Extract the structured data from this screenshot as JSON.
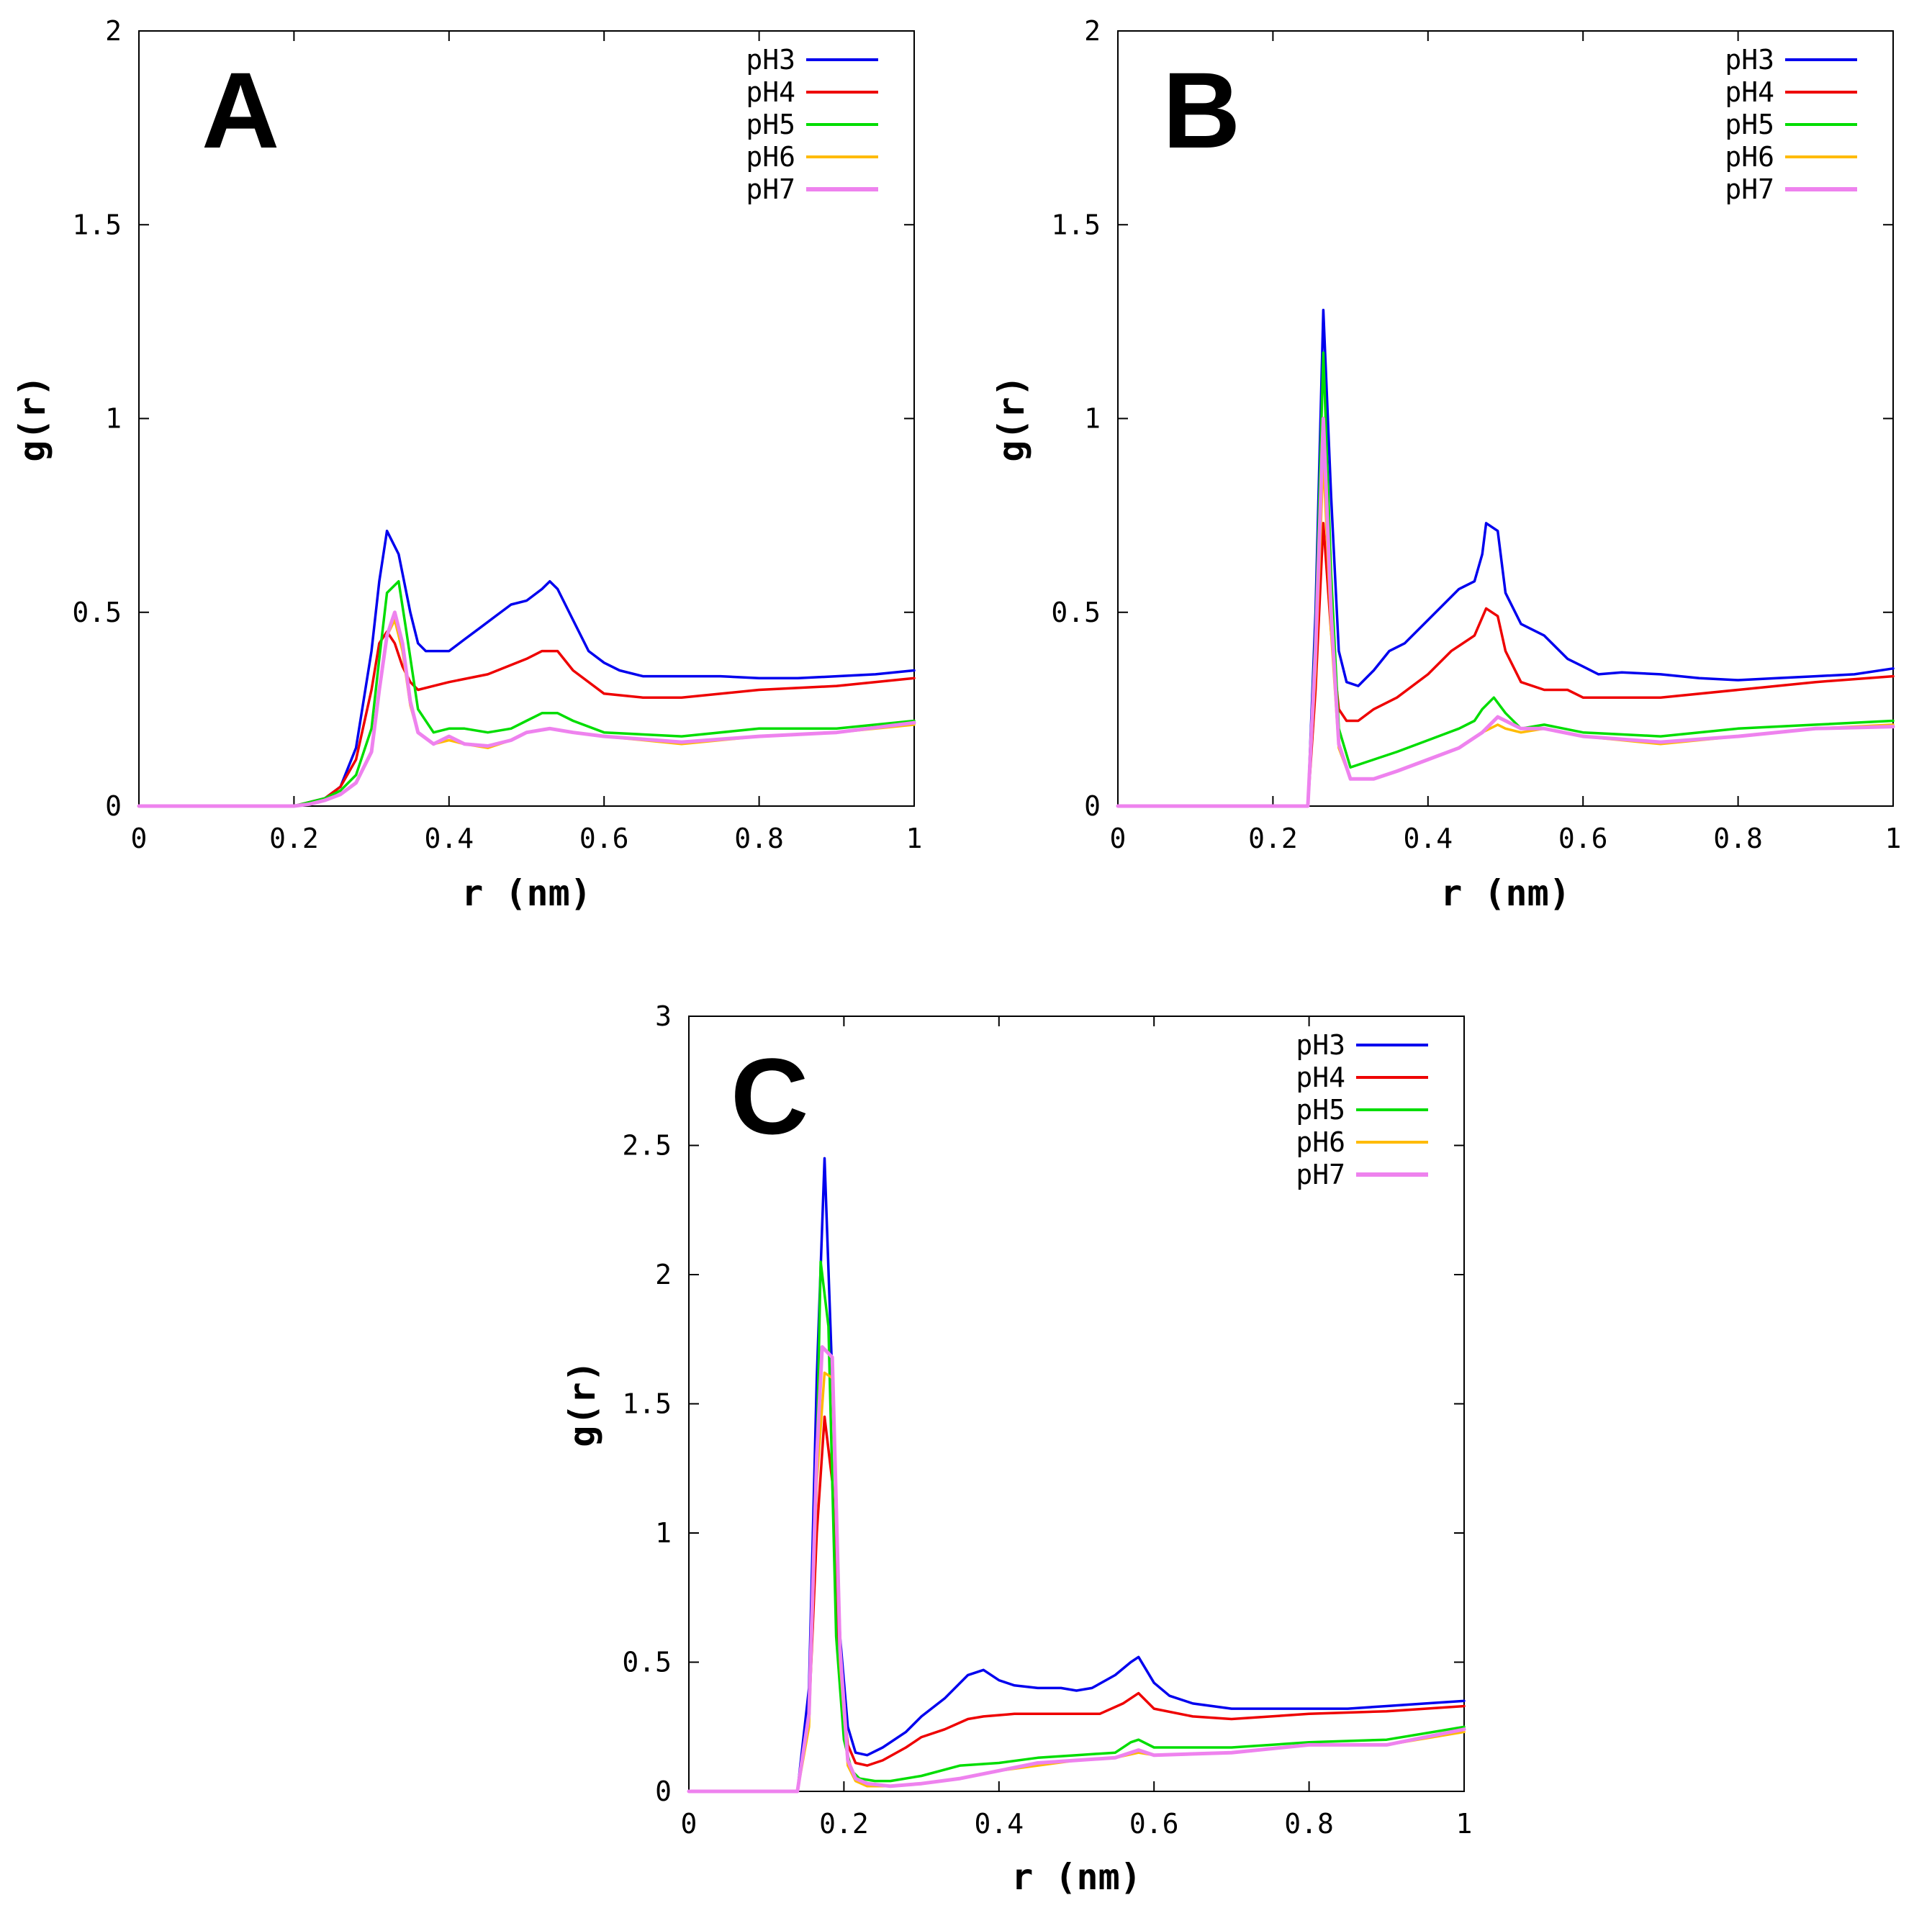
{
  "chart_data": [
    {
      "type": "line",
      "panel_label": "A",
      "xlabel": "r (nm)",
      "ylabel": "g(r)",
      "xlim": [
        0,
        1
      ],
      "ylim": [
        0,
        2
      ],
      "xticks": [
        "0",
        "0.2",
        "0.4",
        "0.6",
        "0.8",
        "1"
      ],
      "yticks": [
        "0",
        "0.5",
        "1",
        "1.5",
        "2"
      ],
      "legend": "top-right",
      "series": [
        {
          "name": "pH3",
          "color": "#0000ee",
          "x": [
            0,
            0.2,
            0.22,
            0.24,
            0.26,
            0.28,
            0.3,
            0.31,
            0.32,
            0.335,
            0.35,
            0.36,
            0.37,
            0.38,
            0.4,
            0.42,
            0.44,
            0.46,
            0.48,
            0.5,
            0.52,
            0.53,
            0.54,
            0.56,
            0.58,
            0.6,
            0.62,
            0.65,
            0.7,
            0.75,
            0.8,
            0.85,
            0.9,
            0.95,
            1.0
          ],
          "y": [
            0,
            0,
            0.01,
            0.02,
            0.05,
            0.15,
            0.4,
            0.58,
            0.71,
            0.65,
            0.5,
            0.42,
            0.4,
            0.4,
            0.4,
            0.43,
            0.46,
            0.49,
            0.52,
            0.53,
            0.56,
            0.58,
            0.56,
            0.48,
            0.4,
            0.37,
            0.35,
            0.335,
            0.335,
            0.335,
            0.33,
            0.33,
            0.335,
            0.34,
            0.35
          ]
        },
        {
          "name": "pH4",
          "color": "#ee0000",
          "x": [
            0,
            0.2,
            0.22,
            0.24,
            0.26,
            0.28,
            0.3,
            0.31,
            0.32,
            0.33,
            0.34,
            0.35,
            0.36,
            0.38,
            0.4,
            0.45,
            0.5,
            0.52,
            0.54,
            0.56,
            0.6,
            0.65,
            0.7,
            0.8,
            0.9,
            1.0
          ],
          "y": [
            0,
            0,
            0.01,
            0.02,
            0.05,
            0.12,
            0.3,
            0.42,
            0.45,
            0.42,
            0.36,
            0.32,
            0.3,
            0.31,
            0.32,
            0.34,
            0.38,
            0.4,
            0.4,
            0.35,
            0.29,
            0.28,
            0.28,
            0.3,
            0.31,
            0.33
          ]
        },
        {
          "name": "pH5",
          "color": "#00dd00",
          "x": [
            0,
            0.2,
            0.22,
            0.24,
            0.26,
            0.28,
            0.3,
            0.31,
            0.32,
            0.335,
            0.345,
            0.36,
            0.38,
            0.4,
            0.42,
            0.45,
            0.48,
            0.5,
            0.52,
            0.54,
            0.56,
            0.6,
            0.7,
            0.8,
            0.9,
            1.0
          ],
          "y": [
            0,
            0,
            0.01,
            0.02,
            0.04,
            0.08,
            0.2,
            0.38,
            0.55,
            0.58,
            0.45,
            0.25,
            0.19,
            0.2,
            0.2,
            0.19,
            0.2,
            0.22,
            0.24,
            0.24,
            0.22,
            0.19,
            0.18,
            0.2,
            0.2,
            0.22
          ]
        },
        {
          "name": "pH6",
          "color": "#ffbb00",
          "x": [
            0,
            0.2,
            0.22,
            0.24,
            0.26,
            0.28,
            0.3,
            0.31,
            0.32,
            0.33,
            0.34,
            0.35,
            0.36,
            0.38,
            0.4,
            0.42,
            0.45,
            0.48,
            0.5,
            0.53,
            0.56,
            0.6,
            0.7,
            0.8,
            0.9,
            1.0
          ],
          "y": [
            0,
            0,
            0.005,
            0.015,
            0.03,
            0.06,
            0.14,
            0.3,
            0.44,
            0.48,
            0.4,
            0.26,
            0.19,
            0.16,
            0.17,
            0.16,
            0.15,
            0.17,
            0.19,
            0.2,
            0.19,
            0.18,
            0.16,
            0.18,
            0.19,
            0.21
          ]
        },
        {
          "name": "pH7",
          "color": "#ee82ee",
          "x": [
            0,
            0.2,
            0.22,
            0.24,
            0.26,
            0.28,
            0.3,
            0.31,
            0.32,
            0.33,
            0.34,
            0.35,
            0.36,
            0.38,
            0.4,
            0.42,
            0.45,
            0.48,
            0.5,
            0.53,
            0.56,
            0.6,
            0.7,
            0.8,
            0.9,
            1.0
          ],
          "y": [
            0,
            0,
            0.005,
            0.015,
            0.03,
            0.06,
            0.14,
            0.3,
            0.44,
            0.5,
            0.42,
            0.27,
            0.19,
            0.16,
            0.18,
            0.16,
            0.155,
            0.17,
            0.19,
            0.2,
            0.19,
            0.18,
            0.165,
            0.18,
            0.19,
            0.215
          ]
        }
      ]
    },
    {
      "type": "line",
      "panel_label": "B",
      "xlabel": "r (nm)",
      "ylabel": "g(r)",
      "xlim": [
        0,
        1
      ],
      "ylim": [
        0,
        2
      ],
      "xticks": [
        "0",
        "0.2",
        "0.4",
        "0.6",
        "0.8",
        "1"
      ],
      "yticks": [
        "0",
        "0.5",
        "1",
        "1.5",
        "2"
      ],
      "legend": "top-right",
      "series": [
        {
          "name": "pH3",
          "color": "#0000ee",
          "x": [
            0,
            0.245,
            0.255,
            0.265,
            0.275,
            0.285,
            0.295,
            0.31,
            0.33,
            0.35,
            0.37,
            0.4,
            0.42,
            0.44,
            0.46,
            0.47,
            0.475,
            0.49,
            0.5,
            0.52,
            0.55,
            0.58,
            0.6,
            0.62,
            0.65,
            0.7,
            0.75,
            0.8,
            0.85,
            0.9,
            0.95,
            1.0
          ],
          "y": [
            0,
            0,
            0.5,
            1.28,
            0.8,
            0.4,
            0.32,
            0.31,
            0.35,
            0.4,
            0.42,
            0.48,
            0.52,
            0.56,
            0.58,
            0.65,
            0.73,
            0.71,
            0.55,
            0.47,
            0.44,
            0.38,
            0.36,
            0.34,
            0.345,
            0.34,
            0.33,
            0.325,
            0.33,
            0.335,
            0.34,
            0.355
          ]
        },
        {
          "name": "pH4",
          "color": "#ee0000",
          "x": [
            0,
            0.245,
            0.255,
            0.265,
            0.275,
            0.285,
            0.295,
            0.31,
            0.33,
            0.36,
            0.4,
            0.43,
            0.46,
            0.475,
            0.49,
            0.5,
            0.52,
            0.55,
            0.58,
            0.6,
            0.65,
            0.7,
            0.8,
            0.9,
            1.0
          ],
          "y": [
            0,
            0,
            0.3,
            0.73,
            0.45,
            0.25,
            0.22,
            0.22,
            0.25,
            0.28,
            0.34,
            0.4,
            0.44,
            0.51,
            0.49,
            0.4,
            0.32,
            0.3,
            0.3,
            0.28,
            0.28,
            0.28,
            0.3,
            0.32,
            0.335
          ]
        },
        {
          "name": "pH5",
          "color": "#00dd00",
          "x": [
            0,
            0.245,
            0.255,
            0.265,
            0.275,
            0.285,
            0.3,
            0.33,
            0.36,
            0.4,
            0.44,
            0.46,
            0.47,
            0.485,
            0.5,
            0.52,
            0.55,
            0.6,
            0.7,
            0.8,
            0.9,
            1.0
          ],
          "y": [
            0,
            0,
            0.45,
            1.17,
            0.6,
            0.2,
            0.1,
            0.12,
            0.14,
            0.17,
            0.2,
            0.22,
            0.25,
            0.28,
            0.24,
            0.2,
            0.21,
            0.19,
            0.18,
            0.2,
            0.21,
            0.22
          ]
        },
        {
          "name": "pH6",
          "color": "#ffbb00",
          "x": [
            0,
            0.245,
            0.255,
            0.265,
            0.275,
            0.285,
            0.3,
            0.33,
            0.36,
            0.4,
            0.44,
            0.47,
            0.49,
            0.5,
            0.52,
            0.55,
            0.6,
            0.7,
            0.8,
            0.9,
            1.0
          ],
          "y": [
            0,
            0,
            0.35,
            0.9,
            0.45,
            0.15,
            0.07,
            0.07,
            0.09,
            0.12,
            0.15,
            0.19,
            0.21,
            0.2,
            0.19,
            0.2,
            0.18,
            0.16,
            0.18,
            0.2,
            0.21
          ]
        },
        {
          "name": "pH7",
          "color": "#ee82ee",
          "x": [
            0,
            0.245,
            0.255,
            0.265,
            0.275,
            0.285,
            0.3,
            0.33,
            0.36,
            0.4,
            0.44,
            0.47,
            0.49,
            0.5,
            0.52,
            0.55,
            0.6,
            0.7,
            0.8,
            0.9,
            1.0
          ],
          "y": [
            0,
            0,
            0.4,
            1.0,
            0.5,
            0.16,
            0.07,
            0.07,
            0.09,
            0.12,
            0.15,
            0.19,
            0.23,
            0.22,
            0.2,
            0.2,
            0.18,
            0.165,
            0.18,
            0.2,
            0.205
          ]
        }
      ]
    },
    {
      "type": "line",
      "panel_label": "C",
      "xlabel": "r (nm)",
      "ylabel": "g(r)",
      "xlim": [
        0,
        1
      ],
      "ylim": [
        0,
        3
      ],
      "xticks": [
        "0",
        "0.2",
        "0.4",
        "0.6",
        "0.8",
        "1"
      ],
      "yticks": [
        "0",
        "0.5",
        "1",
        "1.5",
        "2",
        "2.5",
        "3"
      ],
      "legend": "top-right",
      "series": [
        {
          "name": "pH3",
          "color": "#0000ee",
          "x": [
            0,
            0.14,
            0.155,
            0.165,
            0.175,
            0.185,
            0.195,
            0.205,
            0.215,
            0.23,
            0.25,
            0.28,
            0.3,
            0.33,
            0.36,
            0.38,
            0.4,
            0.42,
            0.45,
            0.48,
            0.5,
            0.52,
            0.55,
            0.57,
            0.58,
            0.6,
            0.62,
            0.65,
            0.7,
            0.75,
            0.8,
            0.85,
            0.9,
            0.95,
            1.0
          ],
          "y": [
            0,
            0,
            0.4,
            1.6,
            2.45,
            1.6,
            0.6,
            0.25,
            0.15,
            0.14,
            0.17,
            0.23,
            0.29,
            0.36,
            0.45,
            0.47,
            0.43,
            0.41,
            0.4,
            0.4,
            0.39,
            0.4,
            0.45,
            0.5,
            0.52,
            0.42,
            0.37,
            0.34,
            0.32,
            0.32,
            0.32,
            0.32,
            0.33,
            0.34,
            0.35
          ]
        },
        {
          "name": "pH4",
          "color": "#ee0000",
          "x": [
            0,
            0.14,
            0.155,
            0.165,
            0.175,
            0.185,
            0.195,
            0.205,
            0.215,
            0.23,
            0.25,
            0.28,
            0.3,
            0.33,
            0.36,
            0.38,
            0.42,
            0.45,
            0.5,
            0.53,
            0.56,
            0.58,
            0.6,
            0.65,
            0.7,
            0.8,
            0.9,
            1.0
          ],
          "y": [
            0,
            0,
            0.3,
            1.0,
            1.45,
            1.2,
            0.45,
            0.18,
            0.11,
            0.1,
            0.12,
            0.17,
            0.21,
            0.24,
            0.28,
            0.29,
            0.3,
            0.3,
            0.3,
            0.3,
            0.34,
            0.38,
            0.32,
            0.29,
            0.28,
            0.3,
            0.31,
            0.33
          ]
        },
        {
          "name": "pH5",
          "color": "#00dd00",
          "x": [
            0,
            0.14,
            0.155,
            0.165,
            0.17,
            0.18,
            0.19,
            0.2,
            0.21,
            0.22,
            0.24,
            0.26,
            0.3,
            0.35,
            0.4,
            0.45,
            0.5,
            0.55,
            0.57,
            0.58,
            0.6,
            0.7,
            0.8,
            0.9,
            1.0
          ],
          "y": [
            0,
            0,
            0.3,
            1.3,
            2.05,
            1.8,
            0.6,
            0.2,
            0.08,
            0.05,
            0.04,
            0.04,
            0.06,
            0.1,
            0.11,
            0.13,
            0.14,
            0.15,
            0.19,
            0.2,
            0.17,
            0.17,
            0.19,
            0.2,
            0.25
          ]
        },
        {
          "name": "pH6",
          "color": "#ffbb00",
          "x": [
            0,
            0.14,
            0.155,
            0.165,
            0.175,
            0.185,
            0.195,
            0.205,
            0.215,
            0.23,
            0.26,
            0.3,
            0.35,
            0.4,
            0.45,
            0.5,
            0.55,
            0.58,
            0.6,
            0.7,
            0.8,
            0.9,
            1.0
          ],
          "y": [
            0,
            0,
            0.25,
            1.2,
            1.62,
            1.6,
            0.5,
            0.1,
            0.04,
            0.02,
            0.02,
            0.03,
            0.05,
            0.08,
            0.1,
            0.12,
            0.13,
            0.15,
            0.14,
            0.15,
            0.18,
            0.18,
            0.23
          ]
        },
        {
          "name": "pH7",
          "color": "#ee82ee",
          "x": [
            0,
            0.14,
            0.155,
            0.165,
            0.172,
            0.185,
            0.195,
            0.205,
            0.215,
            0.23,
            0.26,
            0.3,
            0.35,
            0.4,
            0.45,
            0.5,
            0.55,
            0.58,
            0.6,
            0.7,
            0.8,
            0.9,
            1.0
          ],
          "y": [
            0,
            0,
            0.3,
            1.3,
            1.72,
            1.68,
            0.55,
            0.12,
            0.05,
            0.03,
            0.02,
            0.03,
            0.05,
            0.08,
            0.11,
            0.12,
            0.13,
            0.16,
            0.14,
            0.15,
            0.18,
            0.18,
            0.24
          ]
        }
      ]
    }
  ]
}
